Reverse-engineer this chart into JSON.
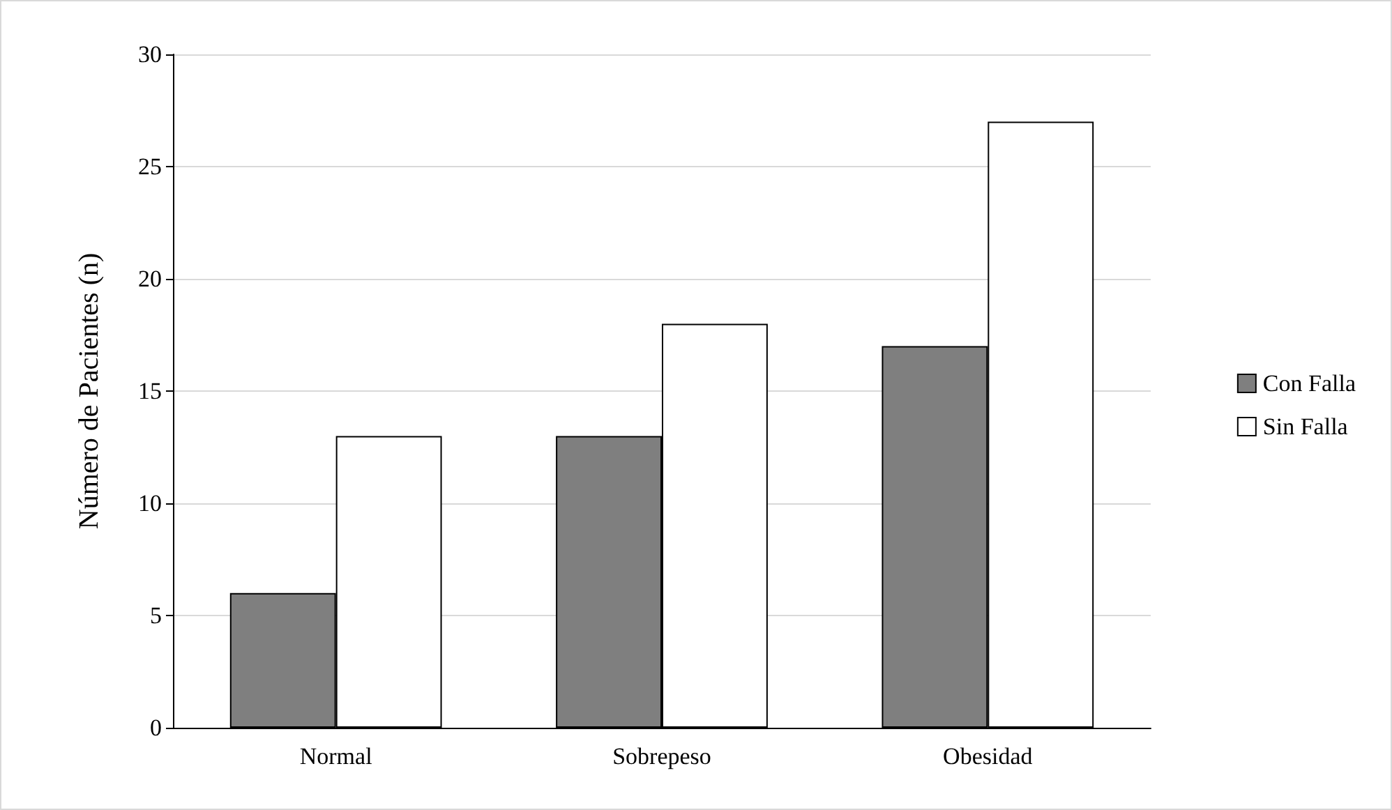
{
  "chart_data": {
    "type": "bar",
    "ylabel": "Número de Pacientes (n)",
    "categories": [
      "Normal",
      "Sobrepeso",
      "Obesidad"
    ],
    "series": [
      {
        "name": "Con Falla",
        "color": "#7f7f7f",
        "values": [
          6,
          13,
          17
        ]
      },
      {
        "name": "Sin Falla",
        "color": "#ffffff",
        "values": [
          13,
          18,
          27
        ]
      }
    ],
    "ylim": [
      0,
      30
    ],
    "yticks": [
      0,
      5,
      10,
      15,
      20,
      25,
      30
    ],
    "grid": "y",
    "legend": "right"
  }
}
